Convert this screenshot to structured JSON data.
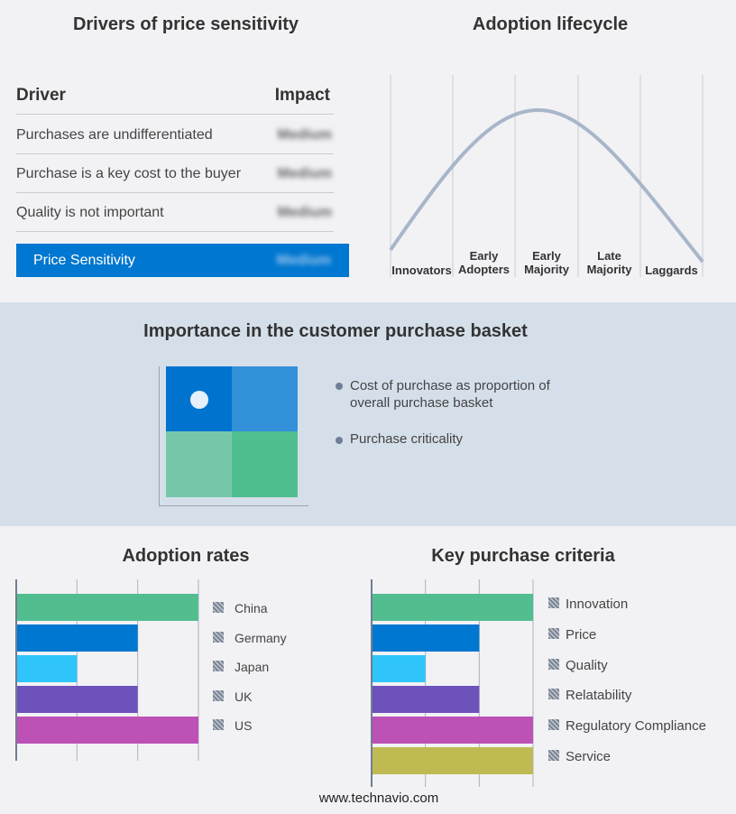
{
  "drivers": {
    "title": "Drivers of price sensitivity",
    "col_driver": "Driver",
    "col_impact": "Impact",
    "rows": [
      {
        "driver": "Purchases are undifferentiated",
        "impact": "Medium"
      },
      {
        "driver": "Purchase is a key cost to the buyer",
        "impact": "Medium"
      },
      {
        "driver": "Quality is not important",
        "impact": "Medium"
      }
    ],
    "summary": {
      "label": "Price Sensitivity",
      "impact": "Medium"
    },
    "accent": "#0077d0"
  },
  "lifecycle": {
    "title": "Adoption lifecycle",
    "stages": [
      "Innovators",
      "Early Adopters",
      "Early Majority",
      "Late Majority",
      "Laggards"
    ],
    "curve_color": "#a9b6c9"
  },
  "basket": {
    "title": "Importance in the customer purchase basket",
    "legend": [
      "Cost of purchase as proportion of overall purchase basket",
      "Purchase criticality"
    ],
    "quadrant_colors": [
      "#0073cf",
      "#3391d9",
      "#76c7aa",
      "#50bf8f"
    ]
  },
  "chart_data": [
    {
      "type": "bar",
      "orientation": "horizontal",
      "title": "Adoption rates",
      "categories": [
        "China",
        "Germany",
        "Japan",
        "UK",
        "US"
      ],
      "values": [
        3,
        2,
        1,
        2,
        3
      ],
      "xlim": [
        0,
        3
      ],
      "grid": true,
      "legend": "right",
      "colors": [
        "#52be90",
        "#0077d0",
        "#2fc5fb",
        "#6e52bb",
        "#bd51b5"
      ]
    },
    {
      "type": "bar",
      "orientation": "horizontal",
      "title": "Key purchase criteria",
      "categories": [
        "Innovation",
        "Price",
        "Quality",
        "Relatability",
        "Regulatory Compliance",
        "Service"
      ],
      "values": [
        3,
        2,
        1,
        2,
        3,
        3
      ],
      "xlim": [
        0,
        3
      ],
      "grid": true,
      "legend": "right",
      "colors": [
        "#52be90",
        "#0077d0",
        "#2fc5fb",
        "#6e52bb",
        "#bd51b5",
        "#bfbb52"
      ]
    }
  ],
  "footer": "www.technavio.com"
}
